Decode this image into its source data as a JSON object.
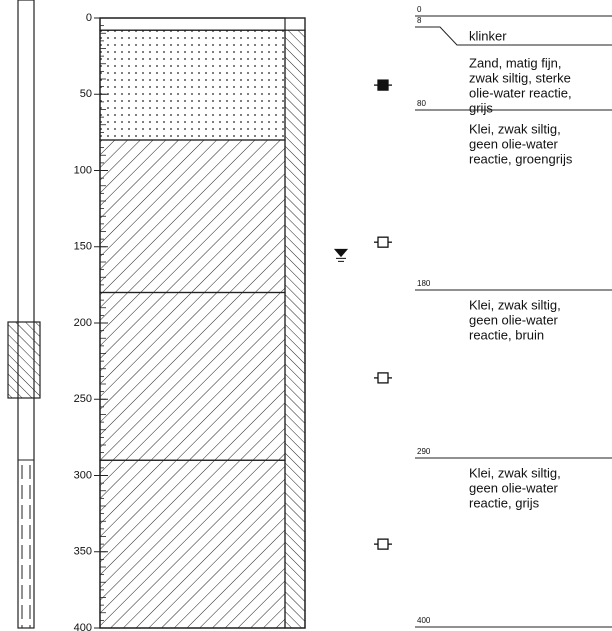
{
  "depth_axis": {
    "ticks": [
      0,
      50,
      100,
      150,
      200,
      250,
      300,
      350,
      400
    ]
  },
  "layers": [
    {
      "top": 0,
      "bottom": 8,
      "pattern": "none",
      "description": [
        "klinker"
      ]
    },
    {
      "top": 8,
      "bottom": 80,
      "pattern": "dots",
      "description": [
        "Zand, matig fijn,",
        "zwak siltig, sterke",
        "olie-water reactie,",
        "grijs"
      ]
    },
    {
      "top": 80,
      "bottom": 180,
      "pattern": "hatch",
      "description": [
        "Klei, zwak siltig,",
        "geen olie-water",
        "reactie, groengrijs"
      ]
    },
    {
      "top": 180,
      "bottom": 290,
      "pattern": "hatch",
      "description": [
        "Klei, zwak siltig,",
        "geen olie-water",
        "reactie, bruin"
      ]
    },
    {
      "top": 290,
      "bottom": 400,
      "pattern": "hatch",
      "description": [
        "Klei, zwak siltig,",
        "geen olie-water",
        "reactie, grijs"
      ]
    }
  ],
  "samples": [
    {
      "depth": 44,
      "type": "filled"
    },
    {
      "depth": 147,
      "type": "open"
    },
    {
      "depth": 236,
      "type": "open"
    },
    {
      "depth": 345,
      "type": "open"
    }
  ],
  "water_level": 155
}
